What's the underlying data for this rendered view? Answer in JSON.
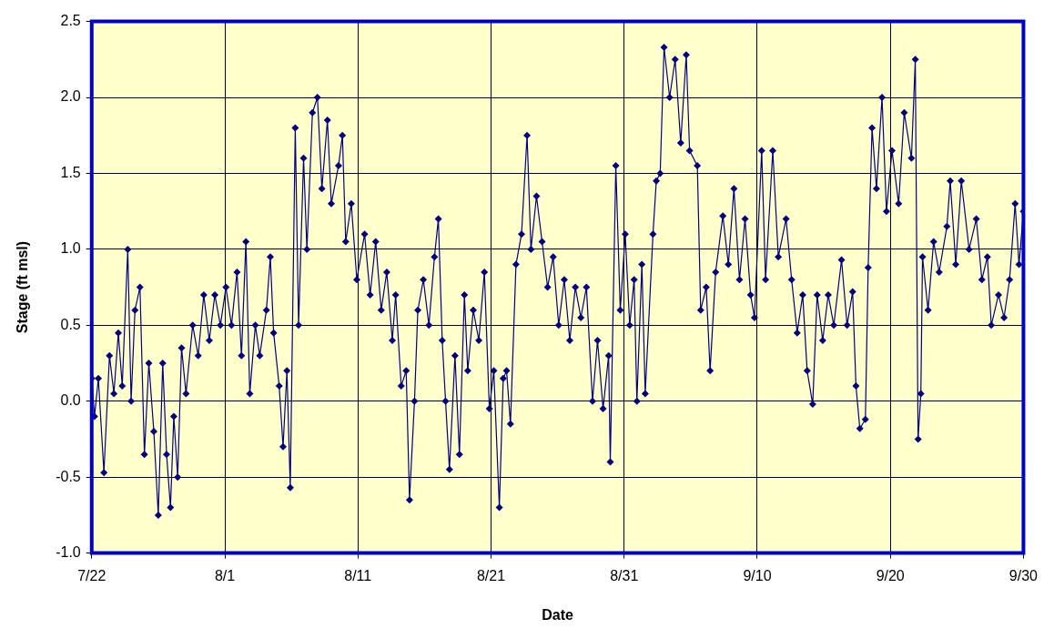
{
  "chart_data": {
    "type": "line",
    "xlabel": "Date",
    "ylabel": "Stage (ft msl)",
    "marker": "diamond",
    "line_style": "solid",
    "grid": true,
    "legend": false,
    "xlim": [
      "--07-22",
      "--09-30"
    ],
    "xticks": [
      {
        "value": "--07-22",
        "label": "7/22"
      },
      {
        "value": "--08-01",
        "label": "8/1"
      },
      {
        "value": "--08-11",
        "label": "8/11"
      },
      {
        "value": "--08-21",
        "label": "8/21"
      },
      {
        "value": "--08-31",
        "label": "8/31"
      },
      {
        "value": "--09-10",
        "label": "9/10"
      },
      {
        "value": "--09-20",
        "label": "9/20"
      },
      {
        "value": "--09-30",
        "label": "9/30"
      }
    ],
    "ylim": [
      -1.0,
      2.5
    ],
    "yticks": [
      {
        "value": -1,
        "label": "-1.0"
      },
      -0.5,
      {
        "value": 0,
        "label": "0.0"
      },
      0.5,
      {
        "value": 1,
        "label": "1.0"
      },
      1.5,
      {
        "value": 2,
        "label": "2.0"
      },
      2.5
    ],
    "series": [
      {
        "color": "#000080",
        "x": [
          "--07-22T00:00",
          "--07-22T05:00",
          "--07-22T12:00",
          "--07-22T22:00",
          "--07-23T08:00",
          "--07-23T16:00",
          "--07-24T00:00",
          "--07-24T07:00",
          "--07-24T17:00",
          "--07-24T23:00",
          "--07-25T06:00",
          "--07-25T15:00",
          "--07-25T23:00",
          "--07-26T07:00",
          "--07-26T16:00",
          "--07-27T00:00",
          "--07-27T08:00",
          "--07-27T15:00",
          "--07-27T22:00",
          "--07-28T04:00",
          "--07-28T11:00",
          "--07-28T18:00",
          "--07-29T02:00",
          "--07-29T14:00",
          "--07-30T00:00",
          "--07-30T10:00",
          "--07-30T20:00",
          "--07-31T06:00",
          "--07-31T16:00",
          "--08-01T02:00",
          "--08-01T12:00",
          "--08-01T22:00",
          "--08-02T06:00",
          "--08-02T14:00",
          "--08-02T21:00",
          "--08-03T07:00",
          "--08-03T15:00",
          "--08-04T03:00",
          "--08-04T10:00",
          "--08-04T16:00",
          "--08-05T02:00",
          "--08-05T09:00",
          "--08-05T16:00",
          "--08-05T22:00",
          "--08-06T07:00",
          "--08-06T13:00",
          "--08-06T22:00",
          "--08-07T04:00",
          "--08-07T14:00",
          "--08-07T23:00",
          "--08-08T07:00",
          "--08-08T17:00",
          "--08-09T00:00",
          "--08-09T13:00",
          "--08-09T20:00",
          "--08-10T02:00",
          "--08-10T12:00",
          "--08-10T22:00",
          "--08-11T12:00",
          "--08-11T22:00",
          "--08-12T08:00",
          "--08-12T18:00",
          "--08-13T04:00",
          "--08-13T14:00",
          "--08-13T20:00",
          "--08-14T06:00",
          "--08-14T15:00",
          "--08-14T21:00",
          "--08-15T06:00",
          "--08-15T12:00",
          "--08-15T22:00",
          "--08-16T08:00",
          "--08-16T18:00",
          "--08-17T01:00",
          "--08-17T08:00",
          "--08-17T14:00",
          "--08-17T21:00",
          "--08-18T07:00",
          "--08-18T15:00",
          "--08-19T00:00",
          "--08-19T06:00",
          "--08-19T16:00",
          "--08-20T02:00",
          "--08-20T12:00",
          "--08-20T21:00",
          "--08-21T05:00",
          "--08-21T15:00",
          "--08-21T22:00",
          "--08-22T04:00",
          "--08-22T11:00",
          "--08-22T21:00",
          "--08-23T07:00",
          "--08-23T17:00",
          "--08-24T00:00",
          "--08-24T10:00",
          "--08-24T20:00",
          "--08-25T06:00",
          "--08-25T16:00",
          "--08-26T02:00",
          "--08-26T12:00",
          "--08-26T22:00",
          "--08-27T08:00",
          "--08-27T18:00",
          "--08-28T04:00",
          "--08-28T15:00",
          "--08-29T00:00",
          "--08-29T10:00",
          "--08-29T20:00",
          "--08-29T23:00",
          "--08-30T09:00",
          "--08-30T17:00",
          "--08-31T02:00",
          "--08-31T10:00",
          "--08-31T18:00",
          "--08-31T23:00",
          "--09-01T08:00",
          "--09-01T14:00",
          "--09-02T04:00",
          "--09-02T10:00",
          "--09-02T17:00",
          "--09-03T00:00",
          "--09-03T10:00",
          "--09-03T20:00",
          "--09-04T06:00",
          "--09-04T16:00",
          "--09-04T22:00",
          "--09-05T12:00",
          "--09-05T18:00",
          "--09-06T04:00",
          "--09-06T11:00",
          "--09-06T21:00",
          "--09-07T10:00",
          "--09-07T20:00",
          "--09-08T06:00",
          "--09-08T16:00",
          "--09-09T02:00",
          "--09-09T12:00",
          "--09-09T19:00",
          "--09-10T08:00",
          "--09-10T15:00",
          "--09-11T04:00",
          "--09-11T14:00",
          "--09-12T04:00",
          "--09-12T14:00",
          "--09-13T00:00",
          "--09-13T10:00",
          "--09-13T18:00",
          "--09-14T04:00",
          "--09-14T12:00",
          "--09-14T22:00",
          "--09-15T08:00",
          "--09-15T18:00",
          "--09-16T08:00",
          "--09-16T18:00",
          "--09-17T04:00",
          "--09-17T10:00",
          "--09-17T17:00",
          "--09-18T03:00",
          "--09-18T08:00",
          "--09-18T15:00",
          "--09-18T23:00",
          "--09-19T09:00",
          "--09-19T17:00",
          "--09-20T03:00",
          "--09-20T15:00",
          "--09-21T01:00",
          "--09-21T14:00",
          "--09-21T21:00",
          "--09-22T02:00",
          "--09-22T07:00",
          "--09-22T10:00",
          "--09-22T20:00",
          "--09-23T06:00",
          "--09-23T16:00",
          "--09-24T06:00",
          "--09-24T12:00",
          "--09-24T22:00",
          "--09-25T08:00",
          "--09-25T22:00",
          "--09-26T11:00",
          "--09-26T21:00",
          "--09-27T07:00",
          "--09-27T14:00",
          "--09-28T03:00",
          "--09-28T13:00",
          "--09-28T23:00",
          "--09-29T09:00",
          "--09-29T16:00",
          "--09-30T00:00"
        ],
        "values": [
          0.15,
          -0.1,
          0.15,
          -0.47,
          0.3,
          0.05,
          0.45,
          0.1,
          1.0,
          0.0,
          0.6,
          0.75,
          -0.35,
          0.25,
          -0.2,
          -0.75,
          0.25,
          -0.35,
          -0.7,
          -0.1,
          -0.5,
          0.35,
          0.05,
          0.5,
          0.3,
          0.7,
          0.4,
          0.7,
          0.5,
          0.75,
          0.5,
          0.85,
          0.3,
          1.05,
          0.05,
          0.5,
          0.3,
          0.6,
          0.95,
          0.45,
          0.1,
          -0.3,
          0.2,
          -0.57,
          1.8,
          0.5,
          1.6,
          1.0,
          1.9,
          2.0,
          1.4,
          1.85,
          1.3,
          1.55,
          1.75,
          1.05,
          1.3,
          0.8,
          1.1,
          0.7,
          1.05,
          0.6,
          0.85,
          0.4,
          0.7,
          0.1,
          0.2,
          -0.65,
          0.0,
          0.6,
          0.8,
          0.5,
          0.95,
          1.2,
          0.4,
          0.0,
          -0.45,
          0.3,
          -0.35,
          0.7,
          0.2,
          0.6,
          0.4,
          0.85,
          -0.05,
          0.2,
          -0.7,
          0.15,
          0.2,
          -0.15,
          0.9,
          1.1,
          1.75,
          1.0,
          1.35,
          1.05,
          0.75,
          0.95,
          0.5,
          0.8,
          0.4,
          0.75,
          0.55,
          0.75,
          0.0,
          0.4,
          -0.05,
          0.3,
          -0.4,
          1.55,
          0.6,
          1.1,
          0.5,
          0.8,
          0.0,
          0.9,
          0.05,
          1.1,
          1.45,
          1.5,
          2.33,
          2.0,
          2.25,
          1.7,
          2.28,
          1.65,
          1.55,
          0.6,
          0.75,
          0.2,
          0.85,
          1.22,
          0.9,
          1.4,
          0.8,
          1.2,
          0.7,
          0.55,
          1.65,
          0.8,
          1.65,
          0.95,
          1.2,
          0.8,
          0.45,
          0.7,
          0.2,
          -0.02,
          0.7,
          0.4,
          0.7,
          0.5,
          0.93,
          0.5,
          0.72,
          0.1,
          -0.18,
          -0.12,
          0.88,
          1.8,
          1.4,
          2.0,
          1.25,
          1.65,
          1.3,
          1.9,
          1.6,
          2.25,
          -0.25,
          0.05,
          0.95,
          0.6,
          1.05,
          0.85,
          1.15,
          1.45,
          0.9,
          1.45,
          1.0,
          1.2,
          0.8,
          0.95,
          0.5,
          0.7,
          0.55,
          0.8,
          1.3,
          0.9,
          1.25
        ]
      }
    ]
  }
}
